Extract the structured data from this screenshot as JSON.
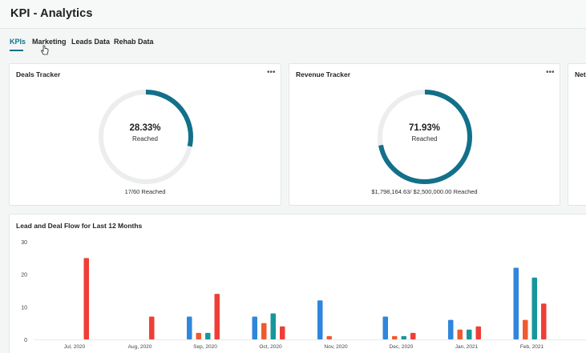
{
  "header": {
    "title": "KPI - Analytics"
  },
  "tabs": [
    {
      "label": "KPIs",
      "active": true
    },
    {
      "label": "Marketing",
      "active": false
    },
    {
      "label": "Leads Data",
      "active": false
    },
    {
      "label": "Rehab Data",
      "active": false
    }
  ],
  "cards": {
    "deals": {
      "title": "Deals Tracker",
      "percent_label": "28.33%",
      "percent": 28.33,
      "sub_label": "Reached",
      "footer": "17/60 Reached"
    },
    "revenue": {
      "title": "Revenue Tracker",
      "percent_label": "71.93%",
      "percent": 71.93,
      "sub_label": "Reached",
      "footer": "$1,798,164.63/ $2,500,000.00 Reached"
    },
    "third": {
      "title": "Net"
    }
  },
  "icons": {
    "more": "more-horizontal-icon",
    "cursor": "hand-pointer-icon"
  },
  "colors": {
    "accent": "#12708a",
    "gauge_track": "#ebedee",
    "blue": "#2f86dc",
    "orange": "#ef5a2e",
    "teal": "#17979c"
  },
  "chart_data": {
    "type": "bar",
    "title": "Lead and Deal Flow for Last 12 Months",
    "categories": [
      "Jul, 2020",
      "Aug, 2020",
      "Sep, 2020",
      "Oct, 2020",
      "Nov, 2020",
      "Dec, 2020",
      "Jan, 2021",
      "Feb, 2021"
    ],
    "series": [
      {
        "color": "#2f86dc",
        "values": [
          0,
          0,
          7,
          7,
          12,
          7,
          6,
          22
        ]
      },
      {
        "color": "#ef5a2e",
        "values": [
          0,
          0,
          2,
          5,
          1,
          1,
          3,
          6
        ]
      },
      {
        "color": "#17979c",
        "values": [
          0,
          0,
          2,
          8,
          0,
          1,
          3,
          19
        ]
      },
      {
        "color": "#ef3e36",
        "values": [
          25,
          7,
          14,
          4,
          0,
          2,
          4,
          11
        ]
      }
    ],
    "yticks": [
      "0",
      "10",
      "20",
      "30"
    ],
    "ylim": [
      0,
      30
    ],
    "grid": false
  }
}
